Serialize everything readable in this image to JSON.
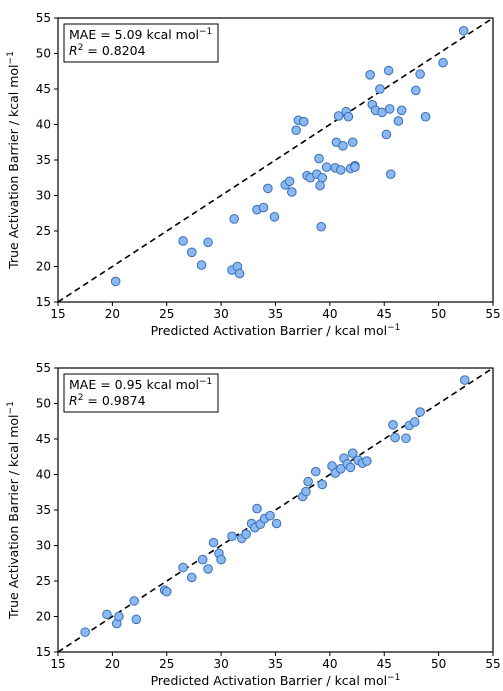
{
  "chart_data": [
    {
      "type": "scatter",
      "xlabel": "Predicted Activation Barrier / kcal mol",
      "xlabel_sup": "−1",
      "ylabel": "True Activation Barrier  / kcal mol",
      "ylabel_sup": "−1",
      "xlim": [
        15,
        55
      ],
      "ylim": [
        15,
        55
      ],
      "xticks": [
        "15",
        "20",
        "25",
        "30",
        "35",
        "40",
        "45",
        "50",
        "55"
      ],
      "yticks": [
        "15",
        "20",
        "25",
        "30",
        "35",
        "40",
        "45",
        "50",
        "55"
      ],
      "grid": false,
      "identity_line": true,
      "stats": {
        "mae_prefix": "MAE = 5.09 kcal mol",
        "mae_sup": "−1",
        "r2_sym": "R",
        "r2_sup": "2",
        "r2_value": " = 0.8204"
      },
      "x": [
        20.3,
        26.5,
        27.3,
        28.2,
        28.8,
        31.0,
        31.2,
        31.5,
        31.7,
        33.3,
        33.9,
        34.3,
        34.9,
        35.9,
        36.3,
        36.5,
        36.9,
        37.1,
        37.6,
        37.9,
        38.2,
        38.8,
        39.0,
        39.1,
        39.2,
        39.3,
        39.7,
        40.5,
        40.6,
        40.8,
        41.0,
        41.2,
        41.5,
        41.7,
        41.9,
        42.1,
        42.3,
        42.3,
        43.7,
        43.9,
        44.2,
        44.6,
        44.8,
        45.2,
        45.4,
        45.5,
        45.6,
        46.3,
        46.6,
        47.9,
        48.3,
        48.8,
        50.4,
        52.3
      ],
      "y": [
        17.9,
        23.6,
        22.0,
        20.2,
        23.4,
        19.5,
        26.7,
        20.0,
        19.0,
        28.0,
        28.3,
        31.0,
        27.0,
        31.5,
        32.0,
        30.5,
        39.2,
        40.6,
        40.4,
        32.8,
        32.5,
        33.0,
        35.2,
        31.4,
        25.6,
        32.5,
        34.0,
        33.9,
        37.5,
        41.2,
        33.6,
        37.0,
        41.8,
        41.1,
        33.8,
        37.5,
        34.2,
        34.0,
        47.0,
        42.8,
        42.0,
        45.0,
        41.7,
        38.6,
        47.6,
        42.2,
        33.0,
        40.5,
        42.0,
        44.8,
        47.1,
        41.1,
        48.7,
        53.2
      ]
    },
    {
      "type": "scatter",
      "xlabel": "Predicted Activation Barrier / kcal mol",
      "xlabel_sup": "−1",
      "ylabel": "True Activation Barrier  / kcal mol",
      "ylabel_sup": "−1",
      "xlim": [
        15,
        55
      ],
      "ylim": [
        15,
        55
      ],
      "xticks": [
        "15",
        "20",
        "25",
        "30",
        "35",
        "40",
        "45",
        "50",
        "55"
      ],
      "yticks": [
        "15",
        "20",
        "25",
        "30",
        "35",
        "40",
        "45",
        "50",
        "55"
      ],
      "grid": false,
      "identity_line": true,
      "stats": {
        "mae_prefix": "MAE = 0.95 kcal mol",
        "mae_sup": "−1",
        "r2_sym": "R",
        "r2_sup": "2",
        "r2_value": " = 0.9874"
      },
      "x": [
        17.5,
        19.5,
        20.4,
        20.6,
        22.0,
        22.2,
        24.8,
        25.0,
        26.5,
        27.3,
        28.3,
        28.8,
        29.3,
        29.8,
        30.0,
        31.0,
        31.9,
        32.3,
        32.8,
        33.1,
        33.3,
        33.6,
        34.0,
        34.5,
        35.1,
        37.5,
        37.8,
        38.0,
        38.7,
        39.3,
        40.2,
        40.5,
        41.0,
        41.3,
        41.6,
        41.9,
        42.1,
        42.6,
        43.0,
        43.4,
        45.8,
        46.0,
        47.0,
        47.3,
        47.8,
        48.3,
        52.4
      ],
      "y": [
        17.8,
        20.3,
        19.0,
        20.0,
        22.2,
        19.6,
        23.7,
        23.5,
        26.9,
        25.5,
        28.0,
        26.7,
        30.4,
        28.9,
        28.0,
        31.3,
        31.0,
        31.6,
        33.1,
        32.5,
        35.2,
        33.0,
        33.8,
        34.2,
        33.1,
        36.9,
        37.6,
        39.0,
        40.4,
        38.6,
        41.2,
        40.2,
        40.8,
        42.3,
        41.5,
        41.0,
        43.0,
        42.0,
        41.6,
        41.9,
        47.0,
        45.2,
        45.1,
        46.9,
        47.4,
        48.8,
        53.3
      ]
    }
  ]
}
